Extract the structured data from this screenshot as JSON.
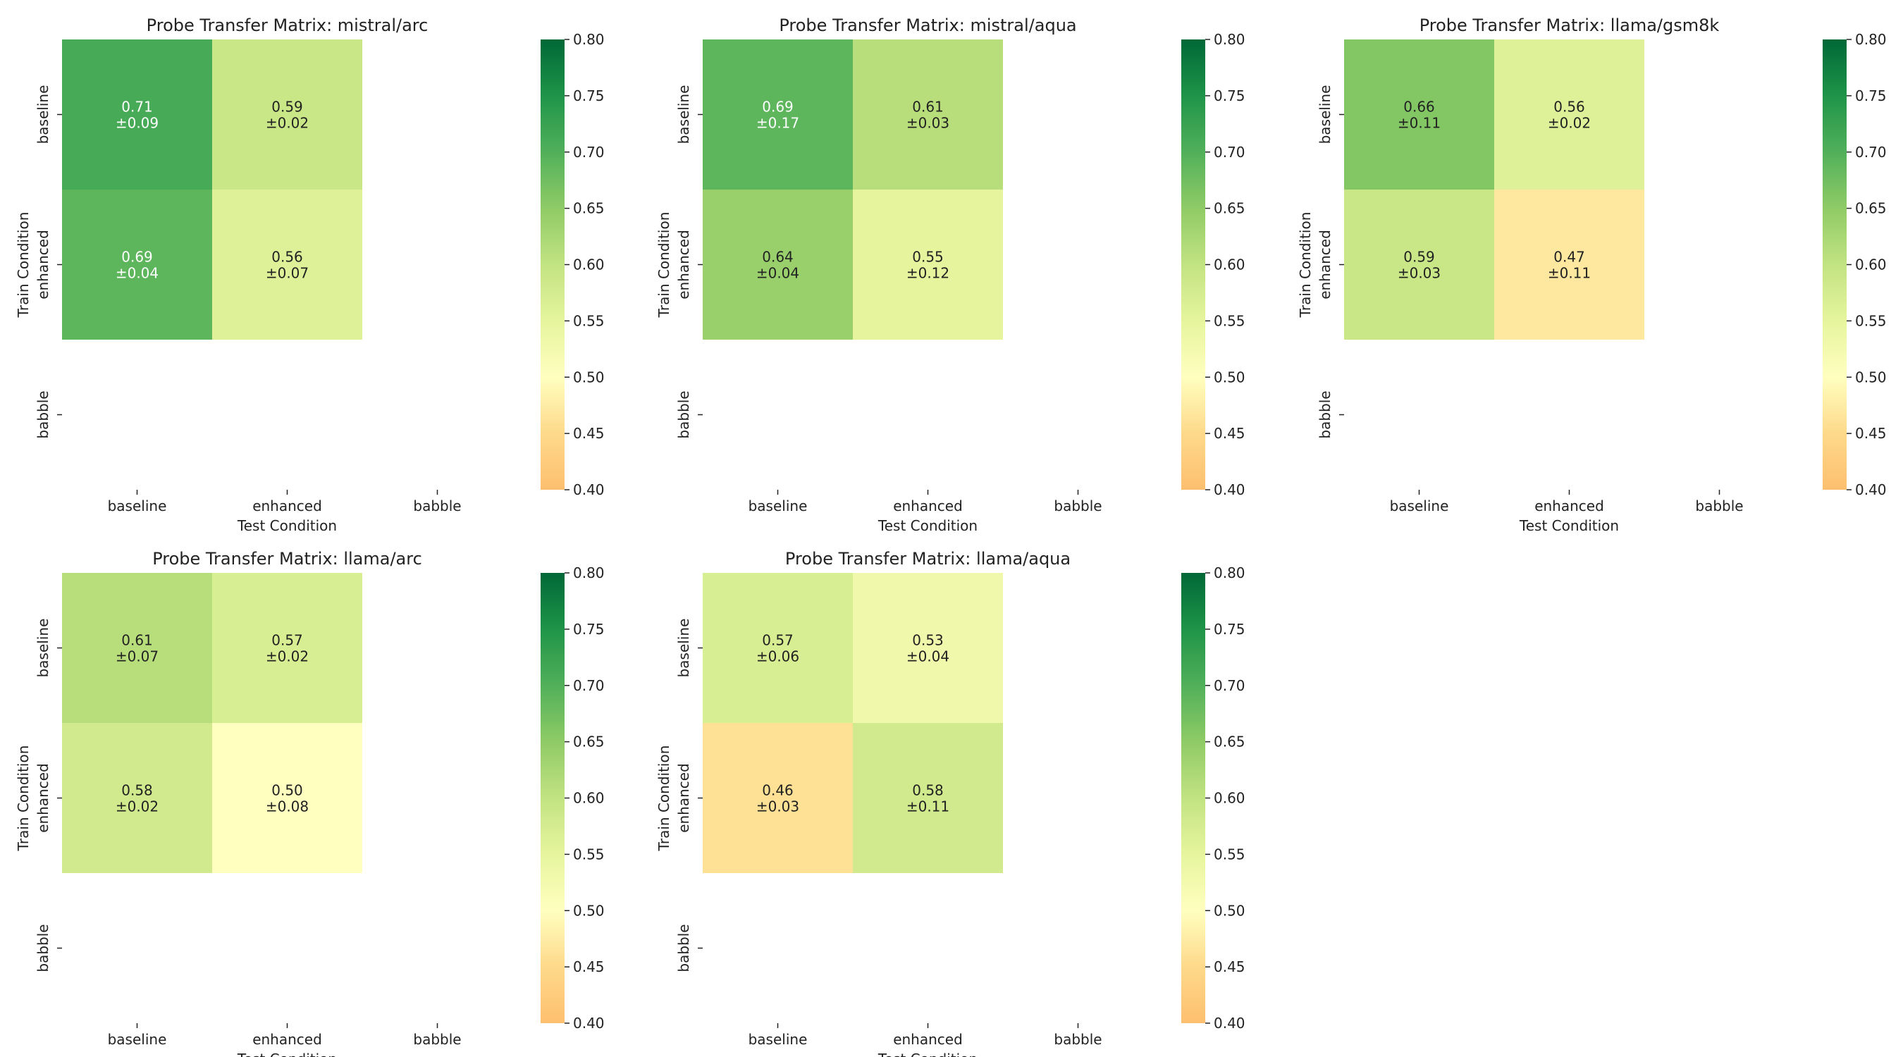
{
  "chart_data": [
    {
      "type": "heatmap",
      "title": "Probe Transfer Matrix: mistral/arc",
      "xlabel": "Test Condition",
      "ylabel": "Train Condition",
      "x_categories": [
        "baseline",
        "enhanced",
        "babble"
      ],
      "y_categories": [
        "baseline",
        "enhanced",
        "babble"
      ],
      "values": [
        [
          0.71,
          0.59,
          null
        ],
        [
          0.69,
          0.56,
          null
        ],
        [
          null,
          null,
          null
        ]
      ],
      "labels": [
        [
          "0.71\n±0.09",
          "0.59\n±0.02",
          null
        ],
        [
          "0.69\n±0.04",
          "0.56\n±0.07",
          null
        ],
        [
          null,
          null,
          null
        ]
      ],
      "colorbar": {
        "range": [
          0.4,
          0.8
        ],
        "ticks": [
          "0.40",
          "0.45",
          "0.50",
          "0.55",
          "0.60",
          "0.65",
          "0.70",
          "0.75",
          "0.80"
        ]
      }
    },
    {
      "type": "heatmap",
      "title": "Probe Transfer Matrix: mistral/aqua",
      "xlabel": "Test Condition",
      "ylabel": "Train Condition",
      "x_categories": [
        "baseline",
        "enhanced",
        "babble"
      ],
      "y_categories": [
        "baseline",
        "enhanced",
        "babble"
      ],
      "values": [
        [
          0.69,
          0.61,
          null
        ],
        [
          0.64,
          0.55,
          null
        ],
        [
          null,
          null,
          null
        ]
      ],
      "labels": [
        [
          "0.69\n±0.17",
          "0.61\n±0.03",
          null
        ],
        [
          "0.64\n±0.04",
          "0.55\n±0.12",
          null
        ],
        [
          null,
          null,
          null
        ]
      ],
      "colorbar": {
        "range": [
          0.4,
          0.8
        ],
        "ticks": [
          "0.40",
          "0.45",
          "0.50",
          "0.55",
          "0.60",
          "0.65",
          "0.70",
          "0.75",
          "0.80"
        ]
      }
    },
    {
      "type": "heatmap",
      "title": "Probe Transfer Matrix: llama/gsm8k",
      "xlabel": "Test Condition",
      "ylabel": "Train Condition",
      "x_categories": [
        "baseline",
        "enhanced",
        "babble"
      ],
      "y_categories": [
        "baseline",
        "enhanced",
        "babble"
      ],
      "values": [
        [
          0.66,
          0.56,
          null
        ],
        [
          0.59,
          0.47,
          null
        ],
        [
          null,
          null,
          null
        ]
      ],
      "labels": [
        [
          "0.66\n±0.11",
          "0.56\n±0.02",
          null
        ],
        [
          "0.59\n±0.03",
          "0.47\n±0.11",
          null
        ],
        [
          null,
          null,
          null
        ]
      ],
      "colorbar": {
        "range": [
          0.4,
          0.8
        ],
        "ticks": [
          "0.40",
          "0.45",
          "0.50",
          "0.55",
          "0.60",
          "0.65",
          "0.70",
          "0.75",
          "0.80"
        ]
      }
    },
    {
      "type": "heatmap",
      "title": "Probe Transfer Matrix: llama/arc",
      "xlabel": "Test Condition",
      "ylabel": "Train Condition",
      "x_categories": [
        "baseline",
        "enhanced",
        "babble"
      ],
      "y_categories": [
        "baseline",
        "enhanced",
        "babble"
      ],
      "values": [
        [
          0.61,
          0.57,
          null
        ],
        [
          0.58,
          0.5,
          null
        ],
        [
          null,
          null,
          null
        ]
      ],
      "labels": [
        [
          "0.61\n±0.07",
          "0.57\n±0.02",
          null
        ],
        [
          "0.58\n±0.02",
          "0.50\n±0.08",
          null
        ],
        [
          null,
          null,
          null
        ]
      ],
      "colorbar": {
        "range": [
          0.4,
          0.8
        ],
        "ticks": [
          "0.40",
          "0.45",
          "0.50",
          "0.55",
          "0.60",
          "0.65",
          "0.70",
          "0.75",
          "0.80"
        ]
      }
    },
    {
      "type": "heatmap",
      "title": "Probe Transfer Matrix: llama/aqua",
      "xlabel": "Test Condition",
      "ylabel": "Train Condition",
      "x_categories": [
        "baseline",
        "enhanced",
        "babble"
      ],
      "y_categories": [
        "baseline",
        "enhanced",
        "babble"
      ],
      "values": [
        [
          0.57,
          0.53,
          null
        ],
        [
          0.46,
          0.58,
          null
        ],
        [
          null,
          null,
          null
        ]
      ],
      "labels": [
        [
          "0.57\n±0.06",
          "0.53\n±0.04",
          null
        ],
        [
          "0.46\n±0.03",
          "0.58\n±0.11",
          null
        ],
        [
          null,
          null,
          null
        ]
      ],
      "colorbar": {
        "range": [
          0.4,
          0.8
        ],
        "ticks": [
          "0.40",
          "0.45",
          "0.50",
          "0.55",
          "0.60",
          "0.65",
          "0.70",
          "0.75",
          "0.80"
        ]
      }
    }
  ],
  "colormap": {
    "name": "RdYlGn-like",
    "stops": [
      {
        "v": 0.4,
        "color": "#fdbf6f"
      },
      {
        "v": 0.45,
        "color": "#fed98a"
      },
      {
        "v": 0.5,
        "color": "#ffffbf"
      },
      {
        "v": 0.55,
        "color": "#e6f59d"
      },
      {
        "v": 0.6,
        "color": "#c2e382"
      },
      {
        "v": 0.65,
        "color": "#8fcb66"
      },
      {
        "v": 0.7,
        "color": "#51b05a"
      },
      {
        "v": 0.75,
        "color": "#1f9448"
      },
      {
        "v": 0.8,
        "color": "#006837"
      }
    ]
  }
}
